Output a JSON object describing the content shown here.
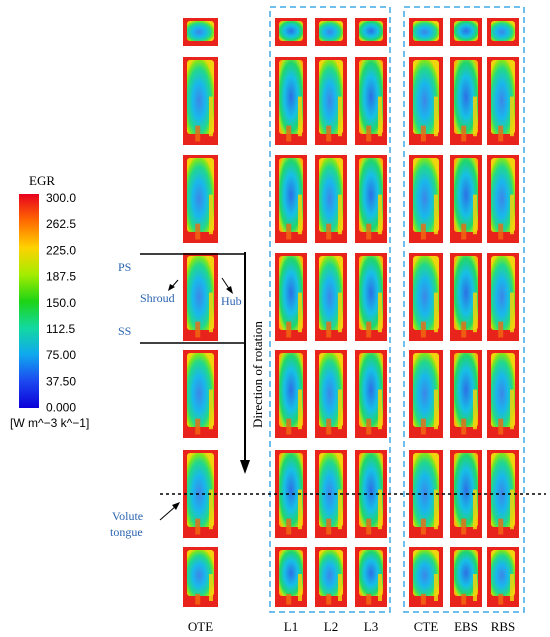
{
  "legend": {
    "title": "EGR",
    "unit": "[W m^−3 k^−1]",
    "ticks": [
      "300.0",
      "262.5",
      "225.0",
      "187.5",
      "150.0",
      "112.5",
      "75.00",
      "37.50",
      "0.000"
    ],
    "colors": [
      "#e8001f",
      "#ff6a00",
      "#ffd200",
      "#a6ec00",
      "#1ed414",
      "#12d9a0",
      "#10a8ef",
      "#1c48f0",
      "#0c00d8"
    ]
  },
  "columns": [
    {
      "key": "OTE",
      "label": "OTE"
    },
    {
      "key": "L1",
      "label": "L1"
    },
    {
      "key": "L2",
      "label": "L2"
    },
    {
      "key": "L3",
      "label": "L3"
    },
    {
      "key": "CTE",
      "label": "CTE"
    },
    {
      "key": "EBS",
      "label": "EBS"
    },
    {
      "key": "RBS",
      "label": "RBS"
    }
  ],
  "annotations": {
    "ps": "PS",
    "ss": "SS",
    "shroud": "Shroud",
    "hub": "Hub",
    "rotation": "Direction of rotation",
    "volute_line1": "Volute",
    "volute_line2": "tongue"
  },
  "colors": {
    "accent_blue": "#2a64b0",
    "group_box": "#3fa9e8"
  }
}
